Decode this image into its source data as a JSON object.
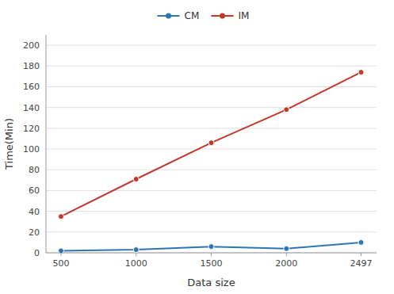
{
  "chart_data": {
    "type": "line",
    "x": [
      500,
      1000,
      1500,
      2000,
      2497
    ],
    "series": [
      {
        "name": "CM",
        "color": "#2e75b6",
        "values": [
          2,
          3,
          6,
          4,
          10
        ]
      },
      {
        "name": "IM",
        "color": "#c0392b",
        "values": [
          35,
          71,
          106,
          138,
          174
        ]
      }
    ],
    "marker": "circle",
    "xlabel": "Data size",
    "ylabel": "Time(Min)",
    "xlim": [
      400,
      2600
    ],
    "xticks": [
      500,
      1000,
      1500,
      2000,
      2497
    ],
    "ylim": [
      0,
      210
    ],
    "yticks": [
      0,
      20,
      40,
      60,
      80,
      100,
      120,
      140,
      160,
      180,
      200
    ],
    "grid": true,
    "legend": "top"
  }
}
